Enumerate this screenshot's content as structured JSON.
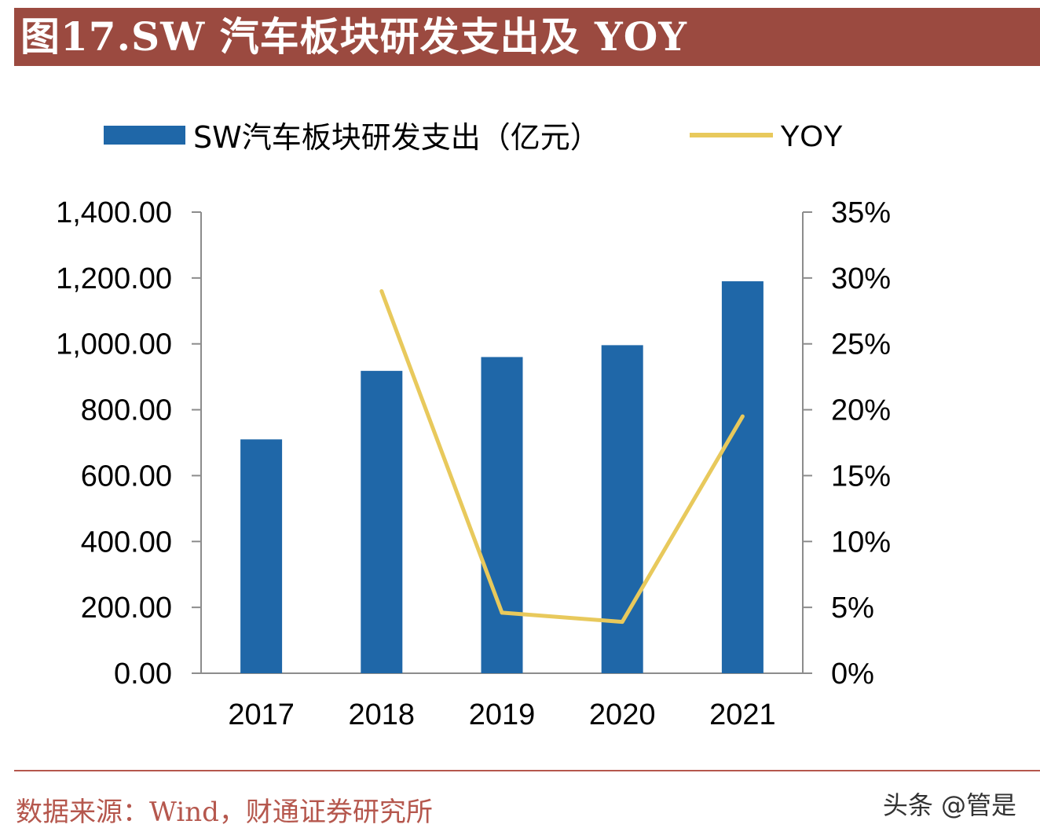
{
  "title": "图17.SW 汽车板块研发支出及 YOY",
  "source": "数据来源：Wind，财通证券研究所",
  "watermark": "头条 @管是",
  "colors": {
    "bar": "#1f67a8",
    "line": "#e8c95c",
    "axis": "#8c8c8c",
    "title_bg": "#9b4a40",
    "source": "#b5574d"
  },
  "chart_data": {
    "type": "bar",
    "categories": [
      "2017",
      "2018",
      "2019",
      "2020",
      "2021"
    ],
    "series": [
      {
        "name": "SW汽车板块研发支出（亿元）",
        "type": "bar",
        "axis": "left",
        "values": [
          710,
          918,
          960,
          996,
          1190
        ]
      },
      {
        "name": "YOY",
        "type": "line",
        "axis": "right",
        "values": [
          null,
          0.29,
          0.046,
          0.039,
          0.195
        ]
      }
    ],
    "y_left": {
      "min": 0,
      "max": 1400,
      "step": 200,
      "tick_labels": [
        "0.00",
        "200.00",
        "400.00",
        "600.00",
        "800.00",
        "1,000.00",
        "1,200.00",
        "1,400.00"
      ]
    },
    "y_right": {
      "min": 0,
      "max": 0.35,
      "step": 0.05,
      "tick_labels": [
        "0%",
        "5%",
        "10%",
        "15%",
        "20%",
        "25%",
        "30%",
        "35%"
      ]
    },
    "legend_position": "top",
    "grid": false
  }
}
